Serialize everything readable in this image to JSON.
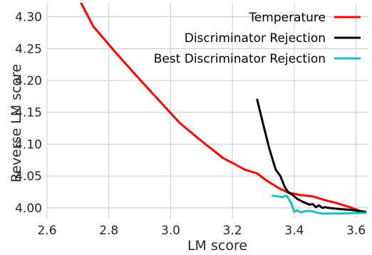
{
  "chart_data": {
    "type": "line",
    "xlabel": "LM score",
    "ylabel": "Reverse LM score",
    "xlim": [
      2.6,
      3.64
    ],
    "ylim": [
      3.983,
      4.322
    ],
    "x_ticks": [
      2.6,
      2.8,
      3.0,
      3.2,
      3.4,
      3.6
    ],
    "x_tick_labels": [
      "2.6",
      "2.8",
      "3.0",
      "3.2",
      "3.4",
      "3.6"
    ],
    "y_ticks": [
      4.0,
      4.05,
      4.1,
      4.15,
      4.2,
      4.25,
      4.3
    ],
    "y_tick_labels": [
      "4.00",
      "4.05",
      "4.10",
      "4.15",
      "4.20",
      "4.25",
      "4.30"
    ],
    "grid": true,
    "legend_position": "top-right",
    "series": [
      {
        "name": "Temperature",
        "color": "#ff0000",
        "x": [
          2.71,
          2.75,
          2.82,
          2.89,
          2.96,
          3.03,
          3.1,
          3.17,
          3.21,
          3.24,
          3.28,
          3.31,
          3.35,
          3.38,
          3.42,
          3.46,
          3.5,
          3.54,
          3.58,
          3.62
        ],
        "y": [
          4.322,
          4.285,
          4.245,
          4.207,
          4.17,
          4.133,
          4.105,
          4.078,
          4.068,
          4.06,
          4.054,
          4.043,
          4.031,
          4.024,
          4.02,
          4.018,
          4.012,
          4.007,
          4.001,
          3.994
        ]
      },
      {
        "name": "Discriminator Rejection",
        "color": "#000000",
        "x": [
          3.28,
          3.3,
          3.32,
          3.34,
          3.355,
          3.37,
          3.38,
          3.395,
          3.41,
          3.43,
          3.45,
          3.46,
          3.47,
          3.48,
          3.49,
          3.5,
          3.51,
          3.53,
          3.55,
          3.58,
          3.61,
          3.63
        ],
        "y": [
          4.17,
          4.13,
          4.092,
          4.06,
          4.05,
          4.032,
          4.025,
          4.02,
          4.014,
          4.009,
          4.005,
          4.006,
          4.001,
          4.004,
          4.0,
          4.001,
          4.0,
          3.999,
          3.998,
          3.997,
          3.995,
          3.994
        ]
      },
      {
        "name": "Best Discriminator Rejection",
        "color": "#17bfbf",
        "x": [
          3.33,
          3.345,
          3.36,
          3.375,
          3.39,
          3.4,
          3.41,
          3.42,
          3.43,
          3.44,
          3.455,
          3.47,
          3.49,
          3.52,
          3.56,
          3.6,
          3.63
        ],
        "y": [
          4.019,
          4.018,
          4.017,
          4.019,
          4.008,
          3.994,
          3.996,
          3.993,
          3.994,
          3.995,
          3.995,
          3.993,
          3.991,
          3.991,
          3.991,
          3.992,
          3.992
        ]
      }
    ]
  }
}
